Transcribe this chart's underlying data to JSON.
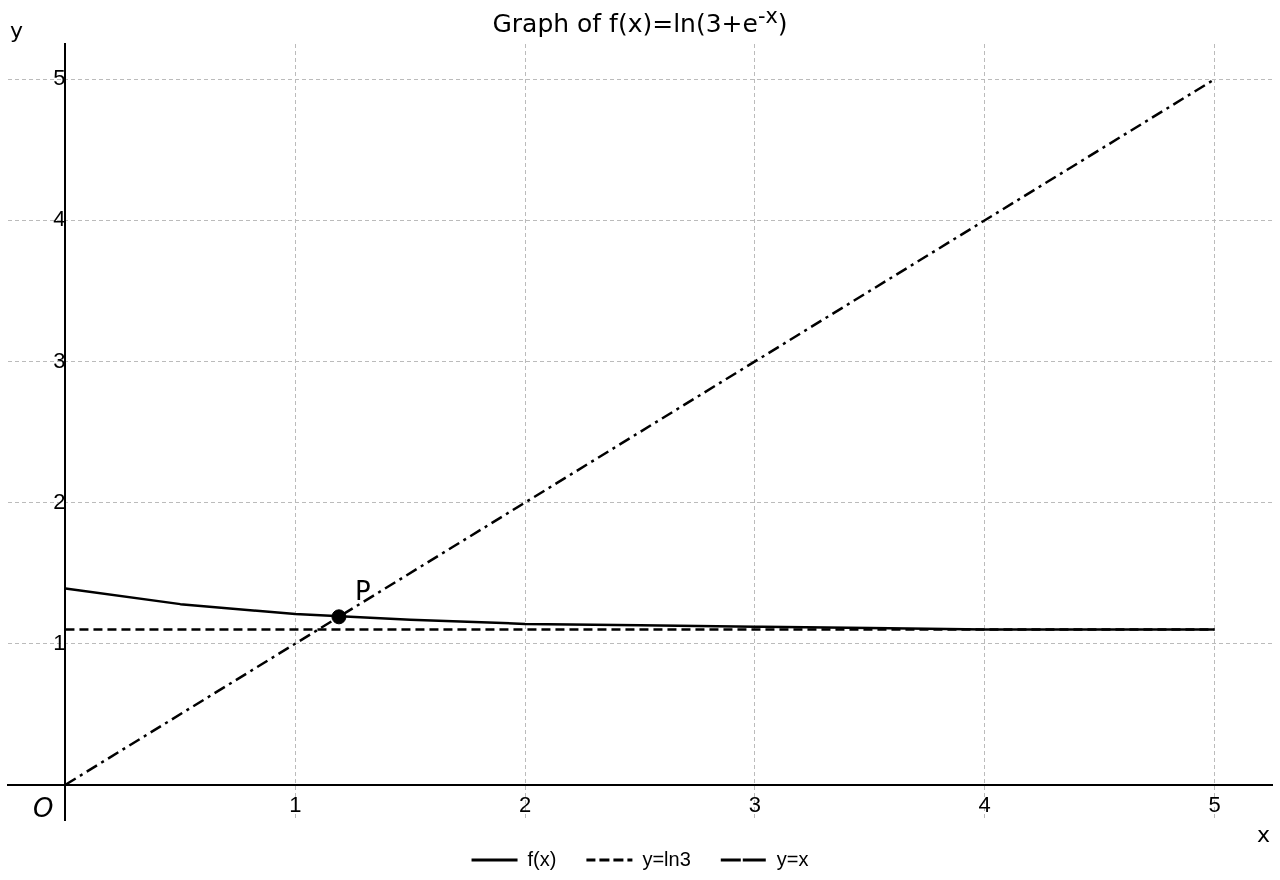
{
  "chart_data": {
    "type": "line",
    "title": "Graph of f(x)=ln(3+e$^{-x}$)",
    "xlabel": "x",
    "ylabel": "y",
    "xlim": [
      -0.25,
      5.25
    ],
    "ylim": [
      -0.25,
      5.25
    ],
    "xticks": [
      1,
      2,
      3,
      4,
      5
    ],
    "yticks": [
      1,
      2,
      3,
      4,
      5
    ],
    "grid": true,
    "legend": "bottom",
    "marker": "none",
    "series": [
      {
        "name": "f(x)",
        "color": "#000000",
        "line_style": "solid",
        "x": [
          0,
          0.5,
          1,
          1.5,
          2,
          2.5,
          3,
          3.5,
          4,
          4.5,
          5
        ],
        "values": [
          1.39,
          1.28,
          1.21,
          1.17,
          1.14,
          1.13,
          1.12,
          1.11,
          1.1,
          1.1,
          1.1
        ]
      },
      {
        "name": "y=ln3",
        "color": "#000000",
        "line_style": "dashed",
        "x": [
          0,
          5
        ],
        "values": [
          1.1,
          1.1
        ]
      },
      {
        "name": "y=x",
        "color": "#000000",
        "line_style": "dashdot",
        "x": [
          0,
          5
        ],
        "values": [
          0,
          5
        ]
      },
      {
        "type": "scatter",
        "color": "#000000",
        "marker": "circle",
        "x": [
          1.19
        ],
        "values": [
          1.19
        ]
      }
    ],
    "annotations": [
      {
        "text": "P",
        "x": 1.19,
        "y": 1.19
      },
      {
        "text": "O",
        "x": 0,
        "y": 0
      }
    ]
  }
}
